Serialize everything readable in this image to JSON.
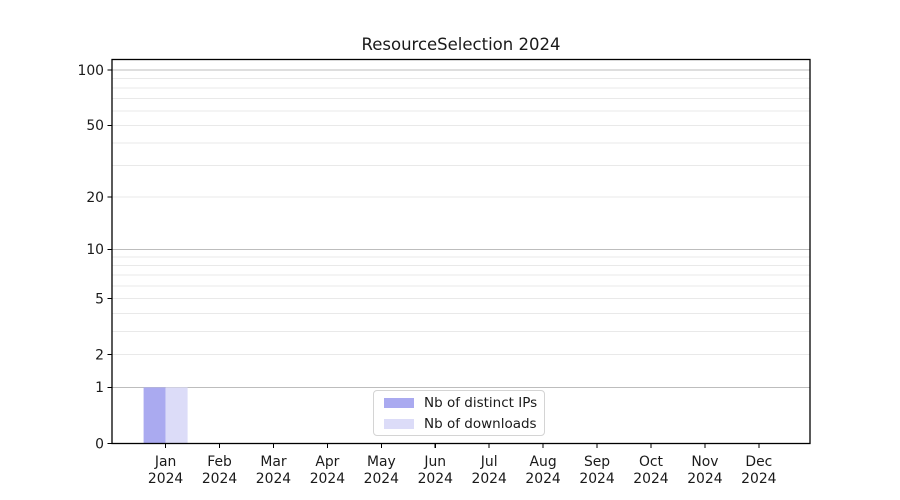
{
  "chart_data": {
    "type": "bar",
    "title": "ResourceSelection 2024",
    "categories": [
      "Jan",
      "Feb",
      "Mar",
      "Apr",
      "May",
      "Jun",
      "Jul",
      "Aug",
      "Sep",
      "Oct",
      "Nov",
      "Dec"
    ],
    "year_label": "2024",
    "series": [
      {
        "name": "Nb of distinct IPs",
        "color": "#aaaaf0",
        "values": [
          1,
          0,
          0,
          0,
          0,
          0,
          0,
          0,
          0,
          0,
          0,
          0
        ]
      },
      {
        "name": "Nb of downloads",
        "color": "#dcdcf8",
        "values": [
          1,
          0,
          0,
          0,
          0,
          0,
          0,
          0,
          0,
          0,
          0,
          0
        ]
      }
    ],
    "yscale": "log1p",
    "ylim": [
      0,
      114
    ],
    "yticks": [
      0,
      1,
      2,
      5,
      10,
      20,
      50,
      100
    ],
    "ytick_labels": [
      "0",
      "1",
      "2",
      "5",
      "10",
      "20",
      "50",
      "100"
    ],
    "minor_grid_yticks": [
      2,
      3,
      4,
      5,
      6,
      7,
      8,
      9,
      20,
      30,
      40,
      50,
      60,
      70,
      80,
      90
    ],
    "major_grid_yticks": [
      1,
      10,
      100
    ],
    "legend_position": "lower center",
    "grid": true,
    "colors": {
      "major_grid": "#bdbdbd",
      "minor_grid": "#e9e9e9",
      "axis": "#000000",
      "text": "#1a1a1a",
      "legend_border": "#d4d4d4",
      "background": "#ffffff"
    }
  }
}
